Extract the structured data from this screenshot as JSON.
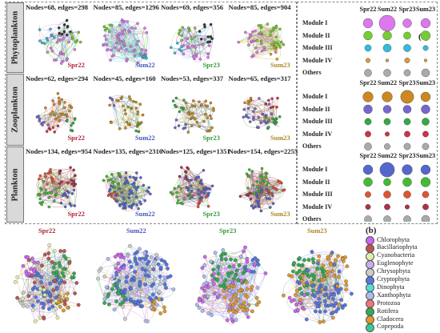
{
  "panel_a": {
    "letter": "(a)",
    "rows": [
      {
        "label": "Phytoplankton",
        "networks": [
          {
            "season": "Spr22",
            "stats": "Nodes=68, edges=298"
          },
          {
            "season": "Sum22",
            "stats": "Nodes=85, edges=1296"
          },
          {
            "season": "Spr23",
            "stats": "Nodes=69, edges=356"
          },
          {
            "season": "Sum23",
            "stats": "Nodes=85, edges=904"
          }
        ]
      },
      {
        "label": "Zooplankton",
        "networks": [
          {
            "season": "Spr22",
            "stats": "Nodes=62, edges=294"
          },
          {
            "season": "Sum22",
            "stats": "Nodes=45, edges=160"
          },
          {
            "season": "Spr23",
            "stats": "Nodes=53, edges=337"
          },
          {
            "season": "Sum23",
            "stats": "Nodes=65, edges=317"
          }
        ]
      },
      {
        "label": "Plankton",
        "networks": [
          {
            "season": "Spr22",
            "stats": "Nodes=134, edges=954"
          },
          {
            "season": "Sum22",
            "stats": "Nodes=135, edges=2316"
          },
          {
            "season": "Spr23",
            "stats": "Nodes=125, edges=1351"
          },
          {
            "season": "Sum23",
            "stats": "Nodes=154, edges=2255"
          }
        ]
      }
    ],
    "module_tables": [
      {
        "headers": [
          "Spr22",
          "Sum22",
          "Spr23",
          "Sum23"
        ],
        "modules": [
          "Module I",
          "Module II",
          "Module III",
          "Module IV",
          "Others"
        ],
        "colors": [
          "#dd77ee",
          "#77cc33",
          "#33bbdd",
          "#dd9933",
          "#aaaaaa"
        ],
        "sizes": [
          [
            0.55,
            1.0,
            0.5,
            0.55
          ],
          [
            0.5,
            0.5,
            0.4,
            0.55
          ],
          [
            0.35,
            0.45,
            0.4,
            0.25
          ],
          [
            0.2,
            0.1,
            0.25,
            0.1
          ],
          [
            0.4,
            0.4,
            0.35,
            0.45
          ]
        ]
      },
      {
        "headers": [
          "Spr22",
          "Sum22",
          "Spr23",
          "Sum23"
        ],
        "modules": [
          "Module I",
          "Module II",
          "Module III",
          "Module IV",
          "Others"
        ],
        "colors": [
          "#cc8822",
          "#7766cc",
          "#33aa44",
          "#cc3344",
          "#aaaaaa"
        ],
        "sizes": [
          [
            0.6,
            0.6,
            0.8,
            0.55
          ],
          [
            0.5,
            0.45,
            0.45,
            0.5
          ],
          [
            0.35,
            0.35,
            0.35,
            0.4
          ],
          [
            0.3,
            0.2,
            0.3,
            0.3
          ],
          [
            0.4,
            0.3,
            0.35,
            0.35
          ]
        ]
      },
      {
        "headers": [
          "Spr22",
          "Sum22",
          "Spr23",
          "Sum23"
        ],
        "modules": [
          "Module I",
          "Module II",
          "Module III",
          "Module IV",
          "Others"
        ],
        "colors": [
          "#5566cc",
          "#44bb33",
          "#dd5533",
          "#aa3344",
          "#aaaaaa"
        ],
        "sizes": [
          [
            0.55,
            0.9,
            0.6,
            0.55
          ],
          [
            0.5,
            0.4,
            0.5,
            0.55
          ],
          [
            0.3,
            0.4,
            0.4,
            0.35
          ],
          [
            0.25,
            0.3,
            0.2,
            0.3
          ],
          [
            0.4,
            0.4,
            0.4,
            0.45
          ]
        ]
      }
    ]
  },
  "panel_b": {
    "letter": "(b)",
    "networks": [
      {
        "season": "Spr22"
      },
      {
        "season": "Sum22"
      },
      {
        "season": "Spr23"
      },
      {
        "season": "Sum23"
      }
    ],
    "legend": [
      {
        "name": "Chlorophyta",
        "color": "#cc66ee"
      },
      {
        "name": "Bacillariophyta",
        "color": "#bb5555"
      },
      {
        "name": "Cyanobacteria",
        "color": "#ddeeaa"
      },
      {
        "name": "Euglenophyte",
        "color": "#ccaaee"
      },
      {
        "name": "Chrysophyta",
        "color": "#cccccc"
      },
      {
        "name": "Cryptophyta",
        "color": "#5577dd"
      },
      {
        "name": "Dinophyta",
        "color": "#55dddd"
      },
      {
        "name": "Xanthophyta",
        "color": "#aabbee"
      },
      {
        "name": "Protozoa",
        "color": "#ee7777"
      },
      {
        "name": "Rotifera",
        "color": "#33aa55"
      },
      {
        "name": "Cladocera",
        "color": "#dd9933"
      },
      {
        "name": "Copepoda",
        "color": "#33cc99"
      }
    ]
  },
  "season_colors": {
    "Spr22": "#aa2233",
    "Sum22": "#4455bb",
    "Spr23": "#339933",
    "Sum23": "#aa8822"
  }
}
